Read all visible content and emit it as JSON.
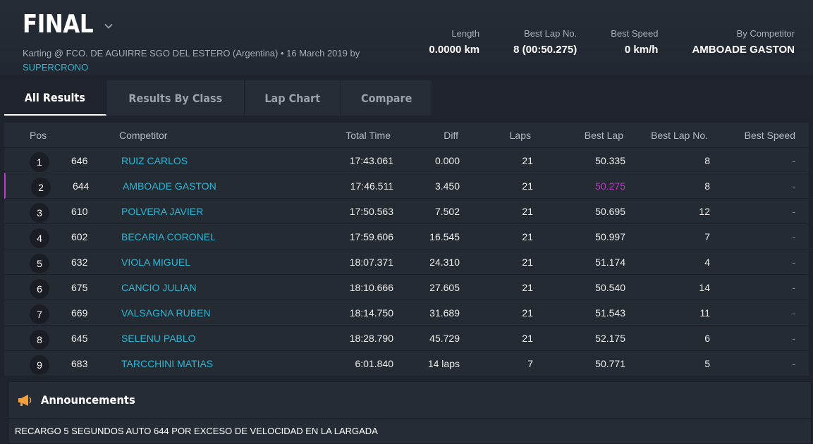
{
  "header": {
    "title": "FINAL",
    "subtitle_prefix": "Karting @ FCO. DE AGUIRRE SGO DEL ESTERO (Argentina) • 16 March 2019 by",
    "subtitle_link": "SUPERCRONO",
    "stats": [
      {
        "label": "Length",
        "value": "0.0000 km"
      },
      {
        "label": "Best Lap No.",
        "value": "8 (00:50.275)"
      },
      {
        "label": "Best Speed",
        "value": "0 km/h"
      },
      {
        "label": "By Competitor",
        "value": "AMBOADE GASTON"
      }
    ]
  },
  "tabs": [
    "All Results",
    "Results By Class",
    "Lap Chart",
    "Compare"
  ],
  "active_tab": "All Results",
  "table": {
    "columns": [
      "Pos",
      "Competitor",
      "Total Time",
      "Diff",
      "Laps",
      "Best Lap",
      "Best Lap No.",
      "Best Speed"
    ],
    "rows": [
      {
        "pos": "1",
        "number": "646",
        "competitor": "RUIZ CARLOS",
        "total": "17:43.061",
        "diff": "0.000",
        "laps": "21",
        "best_lap": "50.335",
        "best_lap_no": "8",
        "best_speed": "-"
      },
      {
        "pos": "2",
        "number": "644",
        "competitor": "AMBOADE GASTON",
        "total": "17:46.511",
        "diff": "3.450",
        "laps": "21",
        "best_lap": "50.275",
        "best_lap_no": "8",
        "best_speed": "-"
      },
      {
        "pos": "3",
        "number": "610",
        "competitor": "POLVERA JAVIER",
        "total": "17:50.563",
        "diff": "7.502",
        "laps": "21",
        "best_lap": "50.695",
        "best_lap_no": "12",
        "best_speed": "-"
      },
      {
        "pos": "4",
        "number": "602",
        "competitor": "BECARIA CORONEL",
        "total": "17:59.606",
        "diff": "16.545",
        "laps": "21",
        "best_lap": "50.997",
        "best_lap_no": "7",
        "best_speed": "-"
      },
      {
        "pos": "5",
        "number": "632",
        "competitor": "VIOLA MIGUEL",
        "total": "18:07.371",
        "diff": "24.310",
        "laps": "21",
        "best_lap": "51.174",
        "best_lap_no": "4",
        "best_speed": "-"
      },
      {
        "pos": "6",
        "number": "675",
        "competitor": "CANCIO JULIAN",
        "total": "18:10.666",
        "diff": "27.605",
        "laps": "21",
        "best_lap": "50.540",
        "best_lap_no": "14",
        "best_speed": "-"
      },
      {
        "pos": "7",
        "number": "669",
        "competitor": "VALSAGNA RUBEN",
        "total": "18:14.750",
        "diff": "31.689",
        "laps": "21",
        "best_lap": "51.543",
        "best_lap_no": "11",
        "best_speed": "-"
      },
      {
        "pos": "8",
        "number": "645",
        "competitor": "SELENU PABLO",
        "total": "18:28.790",
        "diff": "45.729",
        "laps": "21",
        "best_lap": "52.175",
        "best_lap_no": "6",
        "best_speed": "-"
      },
      {
        "pos": "9",
        "number": "683",
        "competitor": "TARCCHINI MATIAS",
        "total": "6:01.840",
        "diff": "14 laps",
        "laps": "7",
        "best_lap": "50.771",
        "best_lap_no": "5",
        "best_speed": "-"
      }
    ],
    "fastest_row_index": 1
  },
  "announcements": {
    "title": "Announcements",
    "text": "RECARGO 5 SEGUNDOS AUTO 644 POR EXCESO DE VELOCIDAD EN LA LARGADA"
  },
  "colors": {
    "link": "#2bb7d6",
    "fastest_lap": "#b83ac6",
    "accent_icon": "#f2a13a"
  },
  "icons": [
    "chevron-down-icon",
    "megaphone-icon"
  ]
}
